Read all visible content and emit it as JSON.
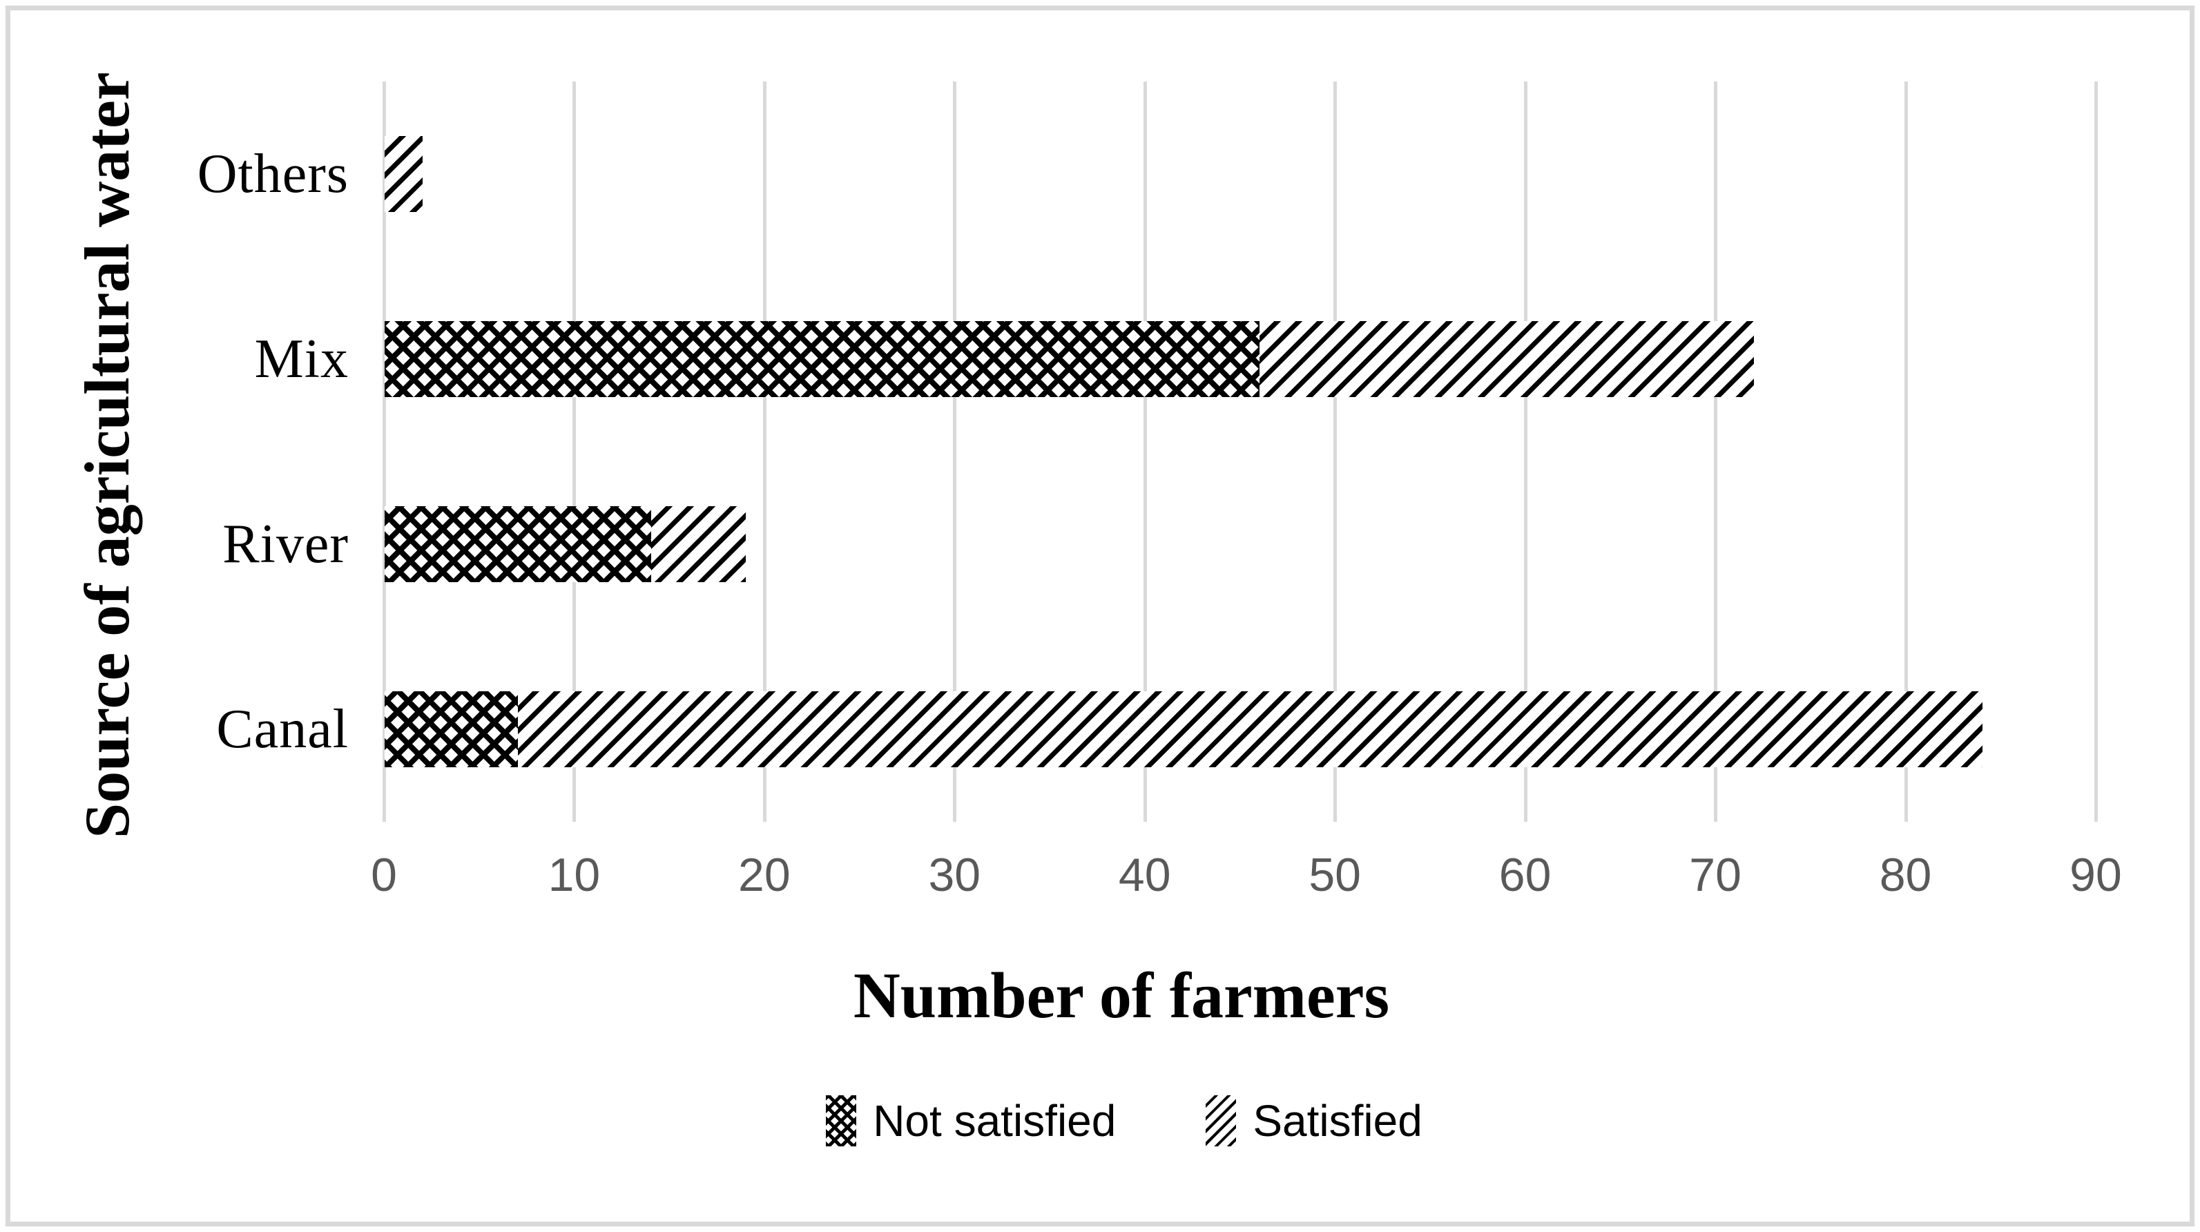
{
  "chart_data": {
    "type": "bar",
    "orientation": "horizontal",
    "stacked": true,
    "title": "",
    "xlabel": "Number of farmers",
    "ylabel": "Source of agricultural water",
    "categories_top_to_bottom": [
      "Others",
      "Mix",
      "River",
      "Canal"
    ],
    "series": [
      {
        "name": "Not satisfied",
        "pattern": "checkerboard",
        "values": [
          0,
          46,
          14,
          7
        ]
      },
      {
        "name": "Satisfied",
        "pattern": "diagonal-stripes",
        "values": [
          2,
          26,
          5,
          77
        ]
      }
    ],
    "totals": [
      2,
      72,
      19,
      84
    ],
    "xlim": [
      0,
      90
    ],
    "xticks": [
      0,
      10,
      20,
      30,
      40,
      50,
      60,
      70,
      80,
      90
    ],
    "grid": "vertical",
    "legend_position": "bottom"
  },
  "colors": {
    "pattern": "#000000",
    "gridline": "#d9d9d9",
    "tick_label": "#595959",
    "border": "#d9d9d9",
    "background": "#ffffff"
  }
}
